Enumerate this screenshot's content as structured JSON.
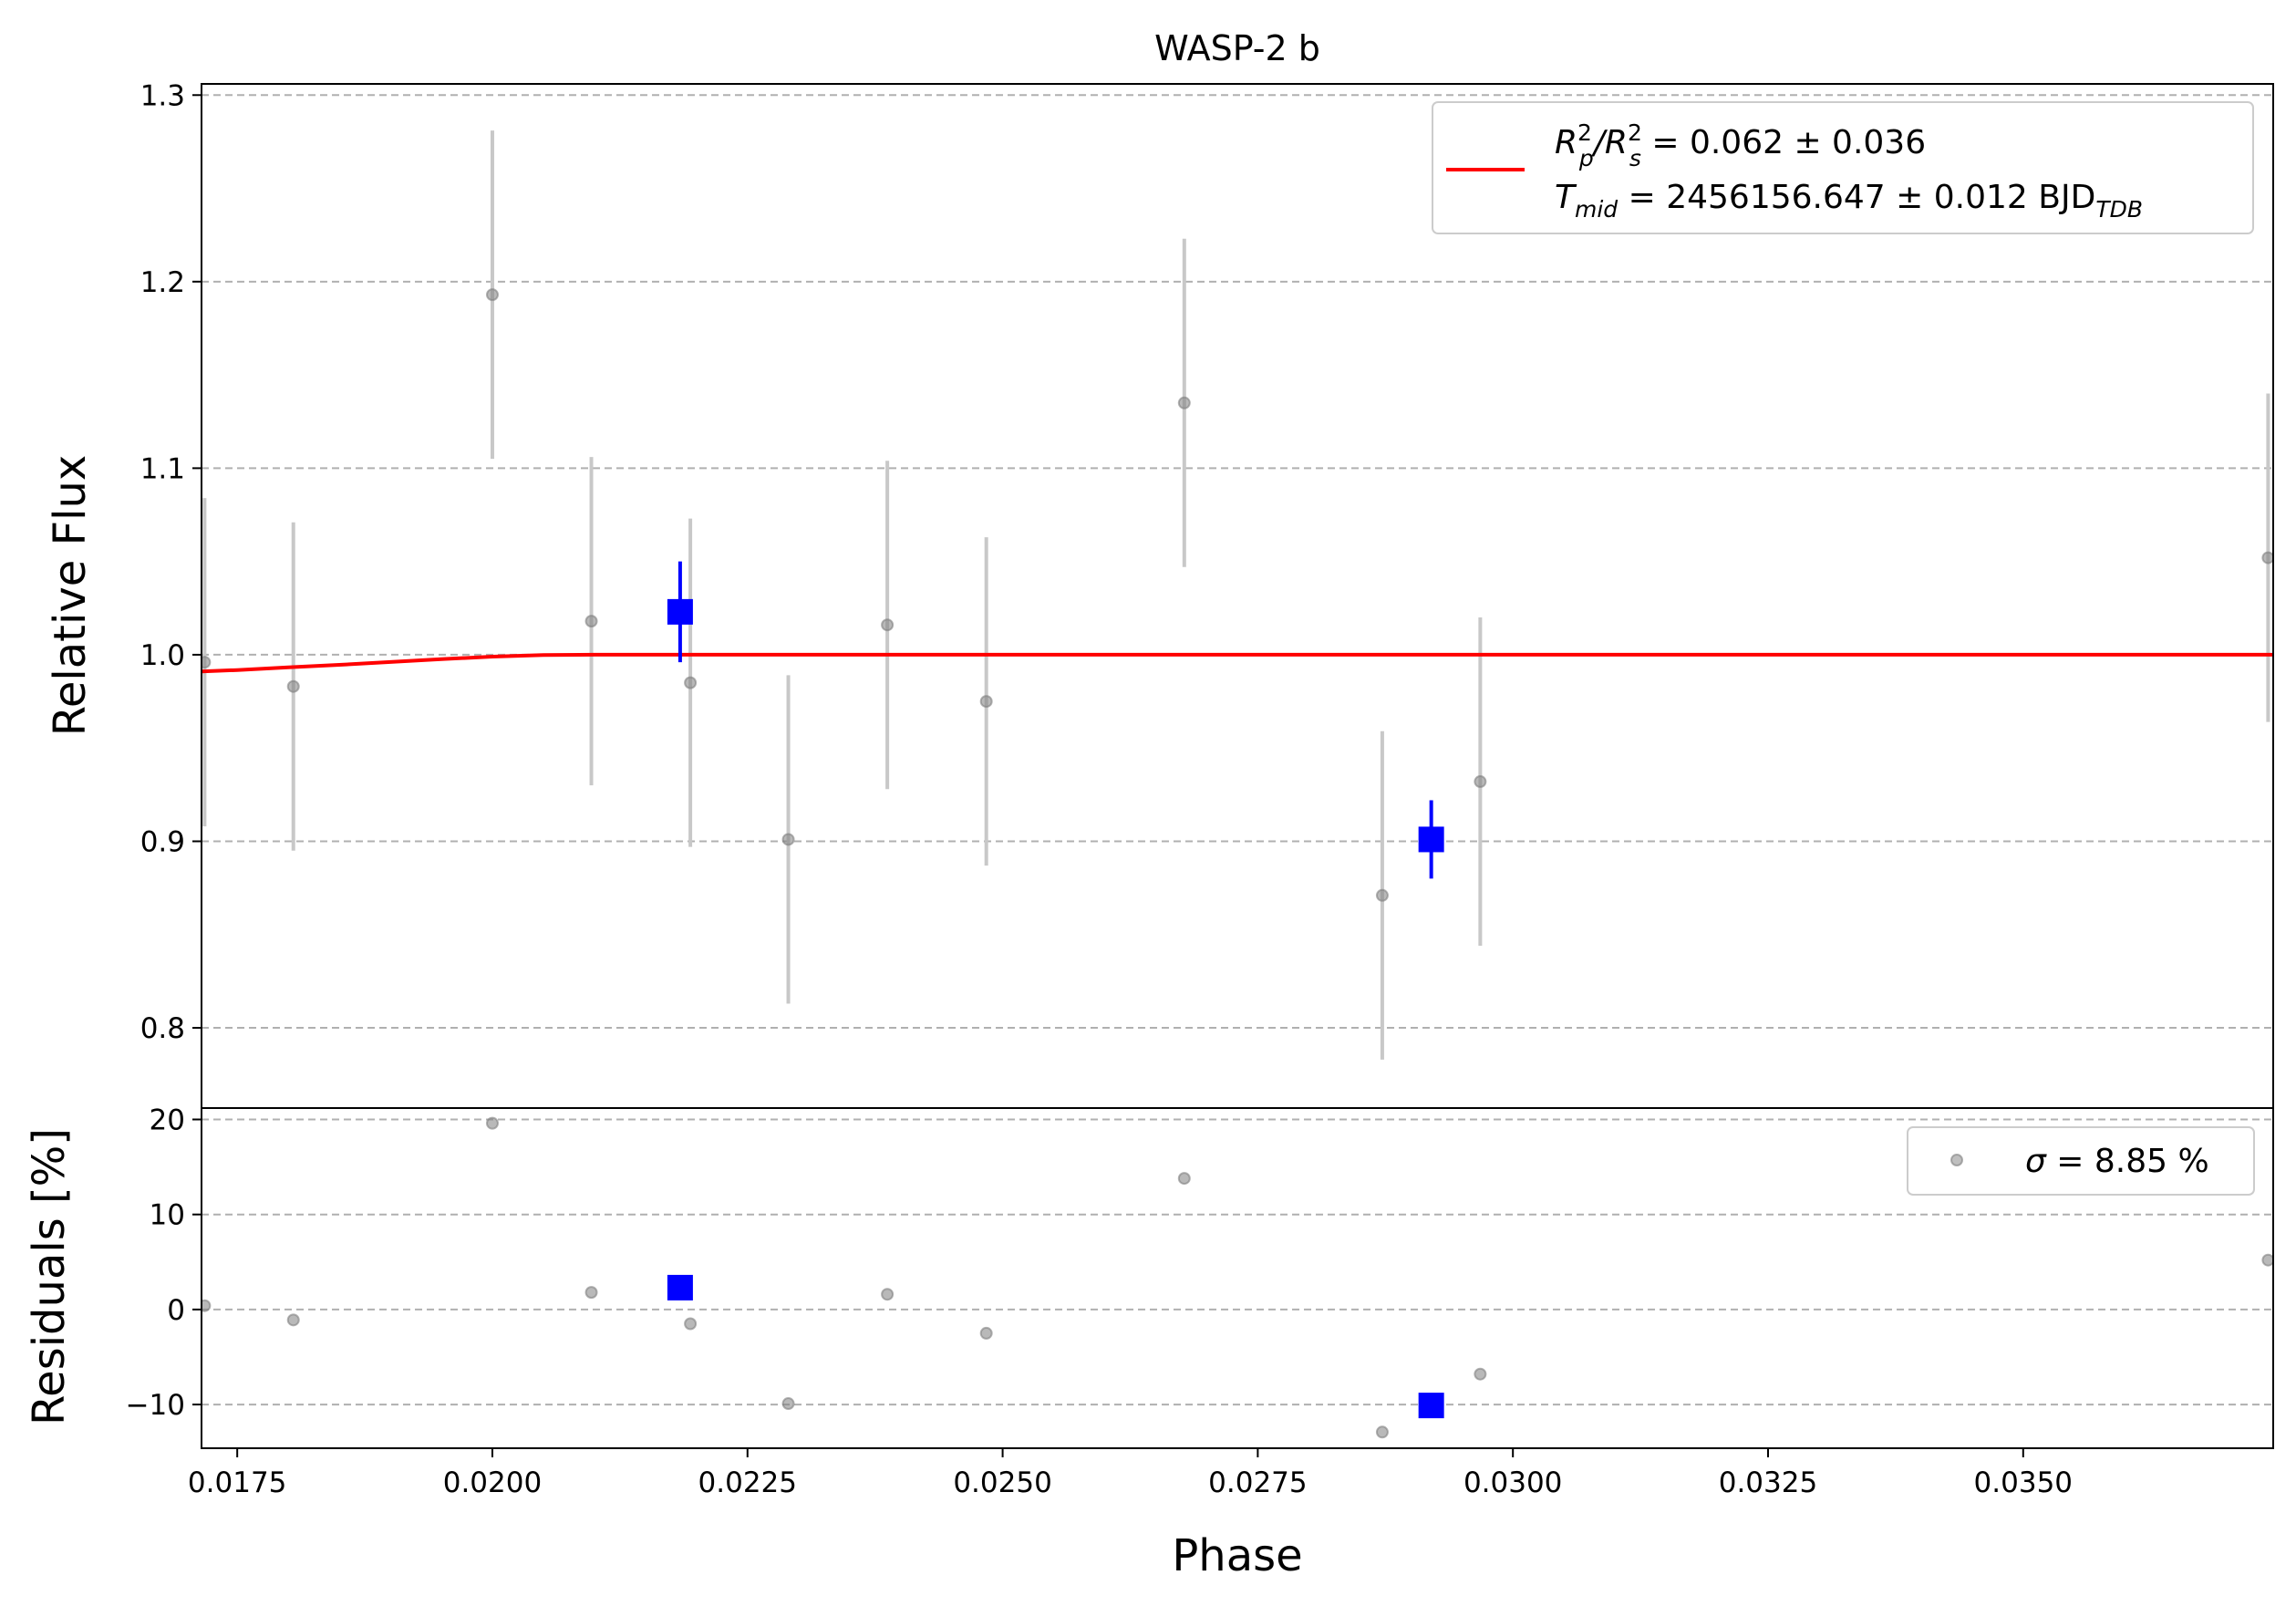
{
  "chart_data": {
    "type": "scatter",
    "title": "WASP-2 b",
    "xlabel": "Phase",
    "xlim": [
      0.01715,
      0.03745
    ],
    "x_ticks": [
      0.0175,
      0.02,
      0.0225,
      0.025,
      0.0275,
      0.03,
      0.0325,
      0.035
    ],
    "x_tick_labels": [
      "0.0175",
      "0.0200",
      "0.0225",
      "0.0250",
      "0.0275",
      "0.0300",
      "0.0325",
      "0.0350"
    ],
    "grid": "horizontal dashed",
    "colors": {
      "raw": "#808080",
      "errorbar": "#c8c8c8",
      "binned": "#0000ff",
      "model": "#ff0000",
      "grid": "#b0b0b0"
    },
    "top_panel": {
      "ylabel": "Relative Flux",
      "ylim": [
        0.757,
        1.306
      ],
      "y_ticks": [
        0.8,
        0.9,
        1.0,
        1.1,
        1.2,
        1.3
      ],
      "y_tick_labels": [
        "0.8",
        "0.9",
        "1.0",
        "1.1",
        "1.2",
        "1.3"
      ],
      "raw": [
        {
          "x": 0.01718,
          "y": 0.996,
          "err": 0.088
        },
        {
          "x": 0.01805,
          "y": 0.983,
          "err": 0.088
        },
        {
          "x": 0.02,
          "y": 1.193,
          "err": 0.088
        },
        {
          "x": 0.02097,
          "y": 1.018,
          "err": 0.088
        },
        {
          "x": 0.02194,
          "y": 0.985,
          "err": 0.088
        },
        {
          "x": 0.0229,
          "y": 0.901,
          "err": 0.088
        },
        {
          "x": 0.02387,
          "y": 1.016,
          "err": 0.088
        },
        {
          "x": 0.02484,
          "y": 0.975,
          "err": 0.088
        },
        {
          "x": 0.02678,
          "y": 1.135,
          "err": 0.088
        },
        {
          "x": 0.02872,
          "y": 0.871,
          "err": 0.088
        },
        {
          "x": 0.02968,
          "y": 0.932,
          "err": 0.088
        },
        {
          "x": 0.0374,
          "y": 1.052,
          "err": 0.088
        }
      ],
      "binned": [
        {
          "x": 0.02184,
          "y": 1.023,
          "err": 0.027
        },
        {
          "x": 0.0292,
          "y": 0.901,
          "err": 0.021
        }
      ],
      "model": {
        "x": [
          0.01715,
          0.0175,
          0.018,
          0.0185,
          0.019,
          0.0195,
          0.02,
          0.0205,
          0.021,
          0.0215,
          0.022,
          0.03745
        ],
        "y": [
          0.991,
          0.9918,
          0.9932,
          0.9946,
          0.9961,
          0.9976,
          0.999,
          0.9998,
          1.0,
          1.0,
          1.0,
          1.0
        ]
      },
      "legend": {
        "position": "top-right",
        "line1_pre": "R",
        "line1_sup1": "2",
        "line1_sub1": "p",
        "line1_mid": "/R",
        "line1_sup2": "2",
        "line1_sub2": "s",
        "line1_post": " = 0.062 ± 0.036",
        "line2_pre": "T",
        "line2_sub": "mid",
        "line2_post": " = 2456156.647 ± 0.012 BJD",
        "line2_unit_sub": "TDB"
      }
    },
    "bottom_panel": {
      "ylabel": "Residuals [%]",
      "ylim": [
        -14.6,
        21.2
      ],
      "y_ticks": [
        -10,
        0,
        10,
        20
      ],
      "y_tick_labels": [
        "−10",
        "0",
        "10",
        "20"
      ],
      "raw": [
        {
          "x": 0.01718,
          "y": 0.4
        },
        {
          "x": 0.01805,
          "y": -1.1
        },
        {
          "x": 0.02,
          "y": 19.6
        },
        {
          "x": 0.02097,
          "y": 1.8
        },
        {
          "x": 0.02194,
          "y": -1.5
        },
        {
          "x": 0.0229,
          "y": -9.9
        },
        {
          "x": 0.02387,
          "y": 1.6
        },
        {
          "x": 0.02484,
          "y": -2.5
        },
        {
          "x": 0.02678,
          "y": 13.8
        },
        {
          "x": 0.02872,
          "y": -12.9
        },
        {
          "x": 0.02968,
          "y": -6.8
        },
        {
          "x": 0.0374,
          "y": 5.2
        }
      ],
      "binned": [
        {
          "x": 0.02184,
          "y": 2.3
        },
        {
          "x": 0.0292,
          "y": -10.1
        }
      ],
      "legend": {
        "position": "top-right",
        "sigma_symbol": "σ",
        "label": " = 8.85 %"
      }
    }
  }
}
